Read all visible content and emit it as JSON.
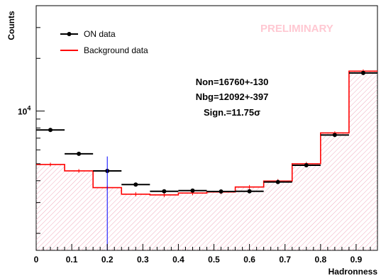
{
  "chart_data": {
    "type": "histogram",
    "title": "",
    "xlabel": "Hadronness",
    "ylabel": "Counts",
    "ylog": true,
    "xlim": [
      0,
      0.96
    ],
    "ylim": [
      1600,
      40000
    ],
    "bin_edges": [
      0,
      0.08,
      0.16,
      0.24,
      0.32,
      0.4,
      0.48,
      0.56,
      0.64,
      0.72,
      0.8,
      0.88,
      0.96
    ],
    "x_ticks": [
      "0",
      "0.1",
      "0.2",
      "0.3",
      "0.4",
      "0.5",
      "0.6",
      "0.7",
      "0.8",
      "0.9"
    ],
    "y_ticks": [
      {
        "value": 10000,
        "label": "10",
        "exp": "4"
      }
    ],
    "series": [
      {
        "name": "ON data",
        "style": "points",
        "color": "#000000",
        "values": [
          7800,
          5700,
          4550,
          3800,
          3480,
          3510,
          3470,
          3480,
          3930,
          4900,
          7300,
          16500
        ],
        "errors": [
          90,
          75,
          65,
          60,
          58,
          58,
          58,
          58,
          62,
          70,
          85,
          130
        ]
      },
      {
        "name": "Background data",
        "style": "step",
        "color": "#ff0000",
        "fill": "#ffc0cb",
        "values": [
          4950,
          4550,
          3650,
          3350,
          3320,
          3400,
          3450,
          3680,
          3980,
          5000,
          7500,
          16900
        ],
        "errors": [
          120,
          110,
          100,
          95,
          95,
          97,
          98,
          100,
          105,
          120,
          160,
          397
        ]
      }
    ],
    "legend": {
      "position": "top-left",
      "entries": [
        "ON data",
        "Background data"
      ]
    },
    "cut_line": {
      "x": 0.2,
      "color": "#0000ff"
    },
    "stats": [
      "Non=16760+-130",
      "Nbg=12092+-397",
      "Sign.=11.75σ"
    ],
    "watermark": "PRELIMINARY"
  }
}
